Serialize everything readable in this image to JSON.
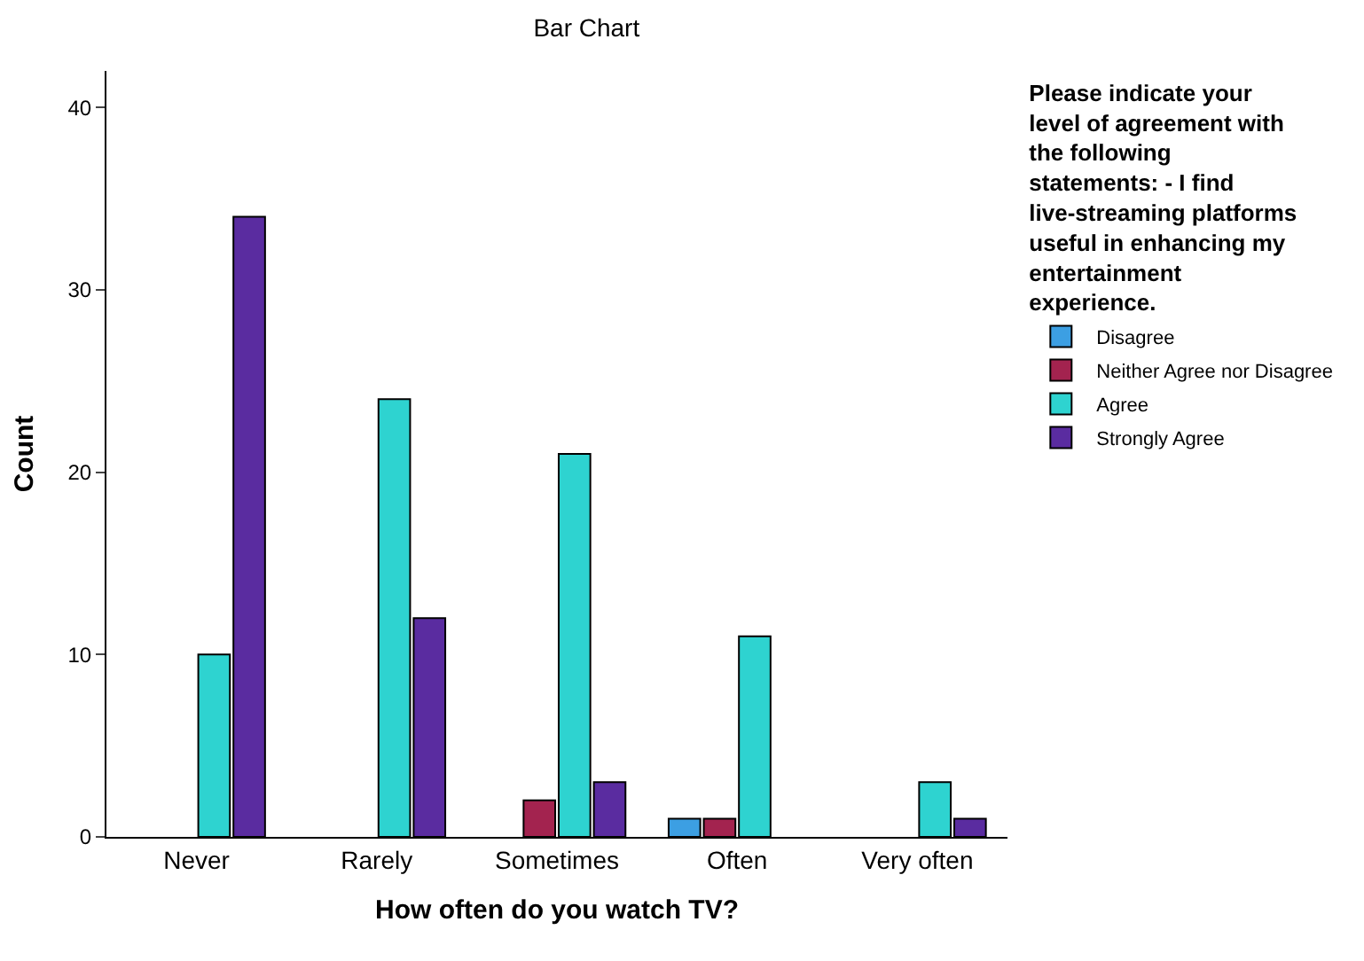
{
  "chart_data": {
    "type": "bar",
    "title": "Bar Chart",
    "xlabel": "How often do you watch TV?",
    "ylabel": "Count",
    "legend_title": "Please indicate your level of agreement with the following statements: - I find live-streaming platforms useful in enhancing my entertainment experience.",
    "categories": [
      "Never",
      "Rarely",
      "Sometimes",
      "Often",
      "Very often"
    ],
    "series": [
      {
        "name": "Disagree",
        "color": "#3c9fe3",
        "values": [
          null,
          null,
          null,
          1,
          null
        ]
      },
      {
        "name": "Neither Agree nor Disagree",
        "color": "#a3234f",
        "values": [
          null,
          null,
          2,
          1,
          null
        ]
      },
      {
        "name": "Agree",
        "color": "#2ed3d0",
        "values": [
          10,
          24,
          21,
          11,
          3
        ]
      },
      {
        "name": "Strongly Agree",
        "color": "#5a2ca0",
        "values": [
          34,
          12,
          3,
          null,
          1
        ]
      }
    ],
    "ylim": [
      0,
      42
    ],
    "yticks": [
      0,
      10,
      20,
      30,
      40
    ],
    "legend": "right"
  }
}
